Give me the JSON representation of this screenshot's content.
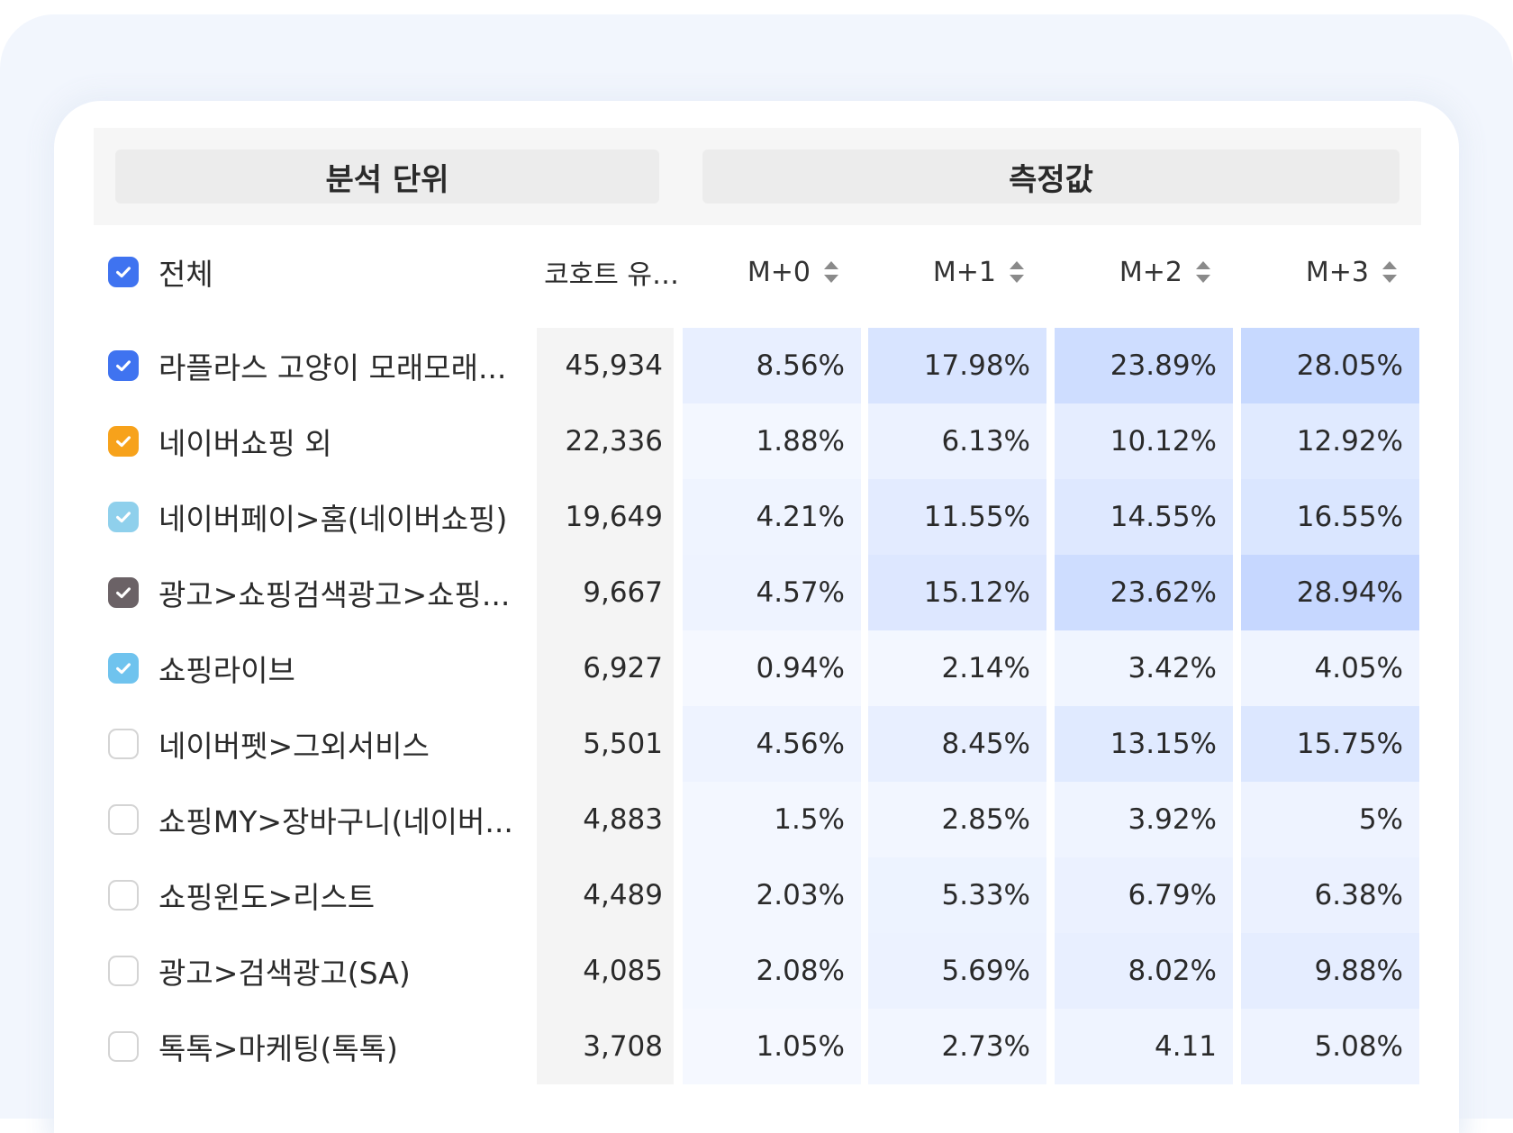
{
  "group_header": {
    "unit_label": "분석 단위",
    "measure_label": "측정값"
  },
  "header": {
    "all_label": "전체",
    "all_checked": true,
    "all_color": "#3f73f0",
    "cohort_label": "코호트 유…",
    "months": [
      "M+0",
      "M+1",
      "M+2",
      "M+3"
    ]
  },
  "rows": [
    {
      "label": "라플라스 고양이 모래모래...",
      "checked": true,
      "color": "#3f73f0",
      "cohort": "45,934",
      "values": [
        "8.56%",
        "17.98%",
        "23.89%",
        "28.05%"
      ],
      "pct": [
        8.56,
        17.98,
        23.89,
        28.05
      ]
    },
    {
      "label": "네이버쇼핑 외",
      "checked": true,
      "color": "#f7a21b",
      "cohort": "22,336",
      "values": [
        "1.88%",
        "6.13%",
        "10.12%",
        "12.92%"
      ],
      "pct": [
        1.88,
        6.13,
        10.12,
        12.92
      ]
    },
    {
      "label": "네이버페이>홈(네이버쇼핑)",
      "checked": true,
      "color": "#8fd0ec",
      "cohort": "19,649",
      "values": [
        "4.21%",
        "11.55%",
        "14.55%",
        "16.55%"
      ],
      "pct": [
        4.21,
        11.55,
        14.55,
        16.55
      ]
    },
    {
      "label": "광고>쇼핑검색광고>쇼핑...",
      "checked": true,
      "color": "#6b6266",
      "cohort": "9,667",
      "values": [
        "4.57%",
        "15.12%",
        "23.62%",
        "28.94%"
      ],
      "pct": [
        4.57,
        15.12,
        23.62,
        28.94
      ]
    },
    {
      "label": "쇼핑라이브",
      "checked": true,
      "color": "#6fc3ee",
      "cohort": "6,927",
      "values": [
        "0.94%",
        "2.14%",
        "3.42%",
        "4.05%"
      ],
      "pct": [
        0.94,
        2.14,
        3.42,
        4.05
      ]
    },
    {
      "label": "네이버펫>그외서비스",
      "checked": false,
      "cohort": "5,501",
      "values": [
        "4.56%",
        "8.45%",
        "13.15%",
        "15.75%"
      ],
      "pct": [
        4.56,
        8.45,
        13.15,
        15.75
      ]
    },
    {
      "label": "쇼핑MY>장바구니(네이버...",
      "checked": false,
      "cohort": "4,883",
      "values": [
        "1.5%",
        "2.85%",
        "3.92%",
        "5%"
      ],
      "pct": [
        1.5,
        2.85,
        3.92,
        5
      ]
    },
    {
      "label": "쇼핑윈도>리스트",
      "checked": false,
      "cohort": "4,489",
      "values": [
        "2.03%",
        "5.33%",
        "6.79%",
        "6.38%"
      ],
      "pct": [
        2.03,
        5.33,
        6.79,
        6.38
      ]
    },
    {
      "label": "광고>검색광고(SA)",
      "checked": false,
      "cohort": "4,085",
      "values": [
        "2.08%",
        "5.69%",
        "8.02%",
        "9.88%"
      ],
      "pct": [
        2.08,
        5.69,
        8.02,
        9.88
      ]
    },
    {
      "label": "톡톡>마케팅(톡톡)",
      "checked": false,
      "cohort": "3,708",
      "values": [
        "1.05%",
        "2.73%",
        "4.11",
        "5.08%"
      ],
      "pct": [
        1.05,
        2.73,
        4.11,
        5.08
      ]
    }
  ]
}
